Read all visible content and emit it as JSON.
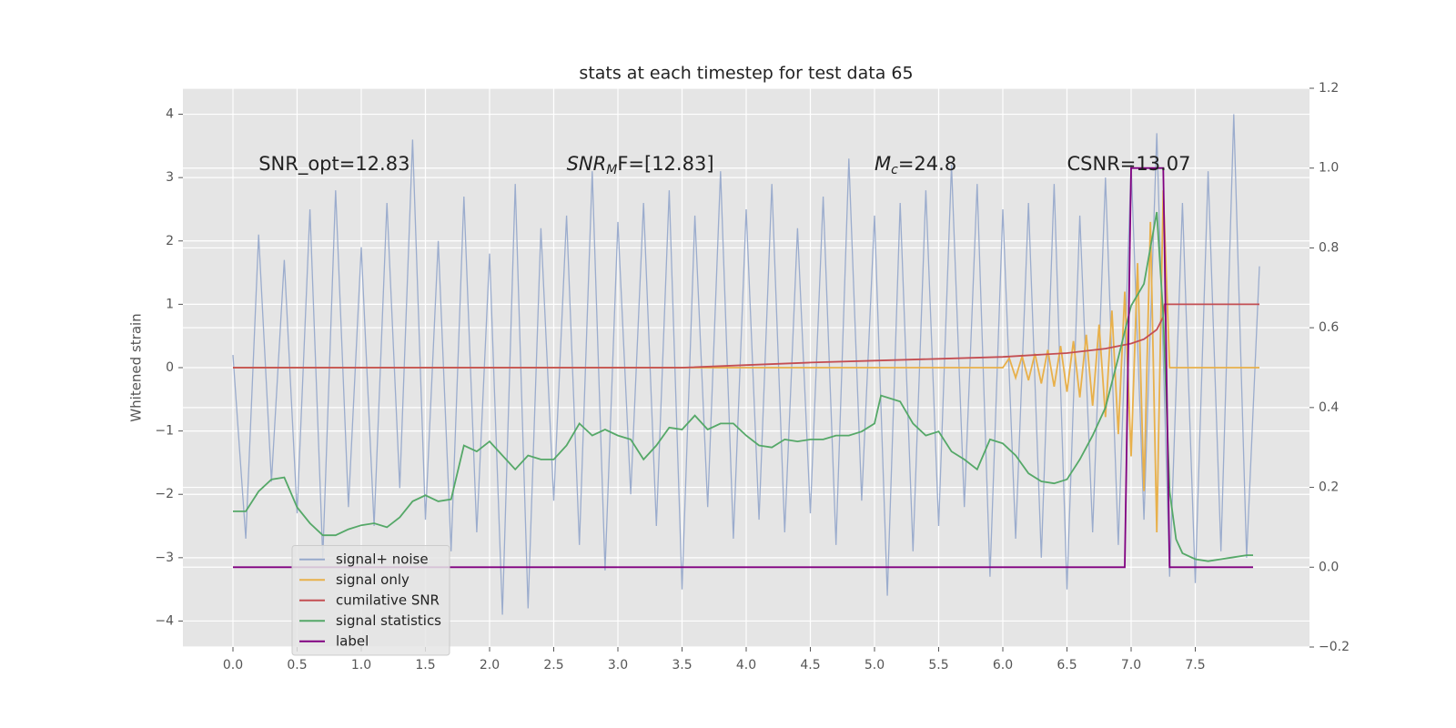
{
  "chart_data": {
    "type": "line",
    "title": "stats at each timestep for test data 65",
    "y_label": "Whitened strain",
    "xlim": [
      -0.39,
      8.39
    ],
    "ylim": [
      -4.41,
      4.41
    ],
    "y2lim": [
      -0.2,
      1.2
    ],
    "xticks": [
      {
        "value": 0,
        "label": "0.0"
      },
      0.5,
      {
        "value": 1,
        "label": "1.0"
      },
      1.5,
      {
        "value": 2,
        "label": "2.0"
      },
      2.5,
      {
        "value": 3,
        "label": "3.0"
      },
      3.5,
      {
        "value": 4,
        "label": "4.0"
      },
      4.5,
      {
        "value": 5,
        "label": "5.0"
      },
      5.5,
      {
        "value": 6,
        "label": "6.0"
      },
      6.5,
      {
        "value": 7,
        "label": "7.0"
      },
      7.5
    ],
    "yticks": [
      {
        "value": -4,
        "label": "−4"
      },
      {
        "value": -3,
        "label": "−3"
      },
      {
        "value": -2,
        "label": "−2"
      },
      {
        "value": -1,
        "label": "−1"
      },
      0,
      1,
      2,
      3,
      4
    ],
    "y2ticks": [
      {
        "value": -0.2,
        "label": "−0.2"
      },
      {
        "value": 0,
        "label": "0.0"
      },
      0.2,
      0.4,
      0.6,
      0.8,
      {
        "value": 1,
        "label": "1.0"
      },
      1.2
    ],
    "grid": true,
    "legend": "lower left",
    "annotations": [
      {
        "text": "SNR_opt=12.83"
      },
      {
        "text": "SNR",
        "sub": "M",
        "after": "F=[12.83]"
      },
      {
        "text": "M",
        "sub": "c",
        "after": "=24.8"
      },
      {
        "text": "CSNR=13.07"
      }
    ],
    "series": [
      {
        "name": "signal+ noise",
        "color": "#97a9cb",
        "x": [
          0,
          0.1,
          0.2,
          0.3,
          0.4,
          0.5,
          0.6,
          0.7,
          0.8,
          0.9,
          1,
          1.1,
          1.2,
          1.3,
          1.4,
          1.5,
          1.6,
          1.7,
          1.8,
          1.9,
          2,
          2.1,
          2.2,
          2.3,
          2.4,
          2.5,
          2.6,
          2.7,
          2.8,
          2.9,
          3,
          3.1,
          3.2,
          3.3,
          3.4,
          3.5,
          3.6,
          3.7,
          3.8,
          3.9,
          4,
          4.1,
          4.2,
          4.3,
          4.4,
          4.5,
          4.6,
          4.7,
          4.8,
          4.9,
          5,
          5.1,
          5.2,
          5.3,
          5.4,
          5.5,
          5.6,
          5.7,
          5.8,
          5.9,
          6,
          6.1,
          6.2,
          6.3,
          6.4,
          6.5,
          6.6,
          6.7,
          6.8,
          6.9,
          7,
          7.1,
          7.2,
          7.3,
          7.4,
          7.5,
          7.6,
          7.7,
          7.8,
          7.9,
          8
        ],
        "values": [
          0.2,
          -2.7,
          2.1,
          -1.8,
          1.7,
          -2.3,
          2.5,
          -3.0,
          2.8,
          -2.2,
          1.9,
          -2.5,
          2.6,
          -1.9,
          3.6,
          -2.4,
          2.0,
          -2.9,
          2.7,
          -2.6,
          1.8,
          -3.9,
          2.9,
          -3.8,
          2.2,
          -2.1,
          2.4,
          -2.8,
          3.1,
          -3.2,
          2.3,
          -2.0,
          2.6,
          -2.5,
          2.8,
          -3.5,
          2.4,
          -2.2,
          3.1,
          -2.7,
          2.5,
          -2.4,
          2.9,
          -2.6,
          2.2,
          -2.3,
          2.7,
          -2.8,
          3.3,
          -2.1,
          2.4,
          -3.6,
          2.6,
          -2.9,
          2.8,
          -2.5,
          3.2,
          -2.2,
          2.9,
          -3.3,
          2.5,
          -2.7,
          2.6,
          -3.0,
          2.9,
          -3.5,
          2.4,
          -2.6,
          3.0,
          -2.8,
          3.2,
          -2.4,
          3.7,
          -3.3,
          2.6,
          -3.4,
          3.1,
          -2.9,
          4.0,
          -3.0,
          1.6
        ]
      },
      {
        "name": "signal only",
        "color": "#e8b04a",
        "x": [
          0,
          6,
          6.05,
          6.1,
          6.15,
          6.2,
          6.25,
          6.3,
          6.35,
          6.4,
          6.45,
          6.5,
          6.55,
          6.6,
          6.65,
          6.7,
          6.75,
          6.8,
          6.85,
          6.9,
          6.95,
          7,
          7.05,
          7.1,
          7.15,
          7.2,
          7.25,
          7.3,
          8
        ],
        "values": [
          0,
          0,
          0.15,
          -0.16,
          0.18,
          -0.2,
          0.22,
          -0.25,
          0.28,
          -0.3,
          0.34,
          -0.38,
          0.42,
          -0.47,
          0.52,
          -0.6,
          0.68,
          -0.78,
          0.9,
          -1.05,
          1.2,
          -1.4,
          1.65,
          -1.95,
          2.3,
          -2.6,
          2.8,
          0,
          0
        ]
      },
      {
        "name": "cumilative SNR",
        "color": "#c44e52",
        "x": [
          0,
          3.5,
          4,
          4.5,
          5,
          5.5,
          6,
          6.5,
          6.8,
          7,
          7.1,
          7.2,
          7.25,
          7.26,
          8
        ],
        "values": [
          0,
          0,
          0.04,
          0.08,
          0.11,
          0.14,
          0.17,
          0.23,
          0.3,
          0.38,
          0.45,
          0.6,
          0.8,
          1,
          1
        ]
      },
      {
        "name": "signal statistics",
        "color": "#55a868",
        "axis": "y2",
        "x": [
          0,
          0.1,
          0.2,
          0.3,
          0.4,
          0.5,
          0.6,
          0.7,
          0.8,
          0.9,
          1,
          1.1,
          1.2,
          1.3,
          1.4,
          1.5,
          1.6,
          1.7,
          1.8,
          1.9,
          2,
          2.1,
          2.2,
          2.3,
          2.4,
          2.5,
          2.6,
          2.7,
          2.8,
          2.9,
          3,
          3.1,
          3.2,
          3.3,
          3.4,
          3.5,
          3.6,
          3.7,
          3.8,
          3.9,
          4,
          4.1,
          4.2,
          4.3,
          4.4,
          4.5,
          4.6,
          4.7,
          4.8,
          4.9,
          5,
          5.05,
          5.2,
          5.3,
          5.4,
          5.5,
          5.6,
          5.7,
          5.8,
          5.9,
          6,
          6.1,
          6.2,
          6.3,
          6.4,
          6.5,
          6.6,
          6.7,
          6.8,
          6.9,
          7,
          7.1,
          7.2,
          7.25,
          7.3,
          7.35,
          7.4,
          7.5,
          7.6,
          7.7,
          7.8,
          7.9,
          7.95
        ],
        "values": [
          0.14,
          0.14,
          0.19,
          0.22,
          0.225,
          0.15,
          0.11,
          0.08,
          0.08,
          0.095,
          0.105,
          0.11,
          0.1,
          0.125,
          0.165,
          0.18,
          0.165,
          0.17,
          0.305,
          0.29,
          0.315,
          0.28,
          0.245,
          0.28,
          0.27,
          0.27,
          0.305,
          0.36,
          0.33,
          0.345,
          0.33,
          0.32,
          0.27,
          0.305,
          0.35,
          0.345,
          0.38,
          0.345,
          0.36,
          0.36,
          0.33,
          0.305,
          0.3,
          0.32,
          0.315,
          0.32,
          0.32,
          0.33,
          0.33,
          0.34,
          0.36,
          0.43,
          0.415,
          0.36,
          0.33,
          0.34,
          0.29,
          0.27,
          0.245,
          0.32,
          0.31,
          0.28,
          0.235,
          0.215,
          0.21,
          0.22,
          0.27,
          0.33,
          0.4,
          0.525,
          0.655,
          0.71,
          0.89,
          0.63,
          0.19,
          0.07,
          0.035,
          0.02,
          0.015,
          0.02,
          0.025,
          0.03,
          0.03
        ]
      },
      {
        "name": "label",
        "color": "#800080",
        "axis": "y2",
        "x": [
          0,
          6.95,
          7,
          7.25,
          7.3,
          7.95
        ],
        "values": [
          0,
          0,
          1,
          1,
          0,
          0
        ]
      }
    ]
  }
}
